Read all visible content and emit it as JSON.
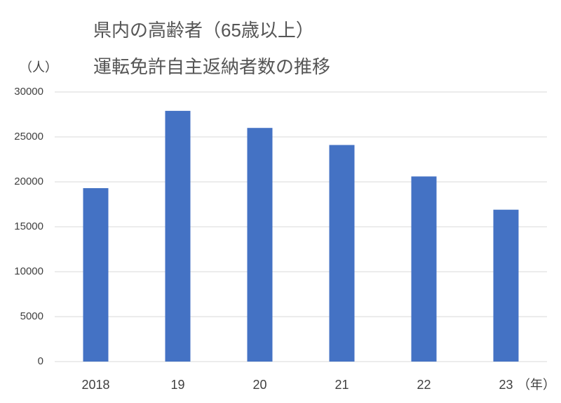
{
  "chart_data": {
    "type": "bar",
    "title": [
      "県内の高齢者（65歳以上）",
      "運転免許自主返納者数の推移"
    ],
    "y_label": "（人）",
    "x_label": "（年）",
    "categories": [
      "2018",
      "19",
      "20",
      "21",
      "22",
      "23"
    ],
    "values": [
      19300,
      27900,
      26000,
      24100,
      20600,
      16900
    ],
    "color": "#4472c4",
    "ylim": [
      0,
      30000
    ],
    "yticks": [
      0,
      5000,
      10000,
      15000,
      20000,
      25000,
      30000
    ],
    "grid": true
  }
}
